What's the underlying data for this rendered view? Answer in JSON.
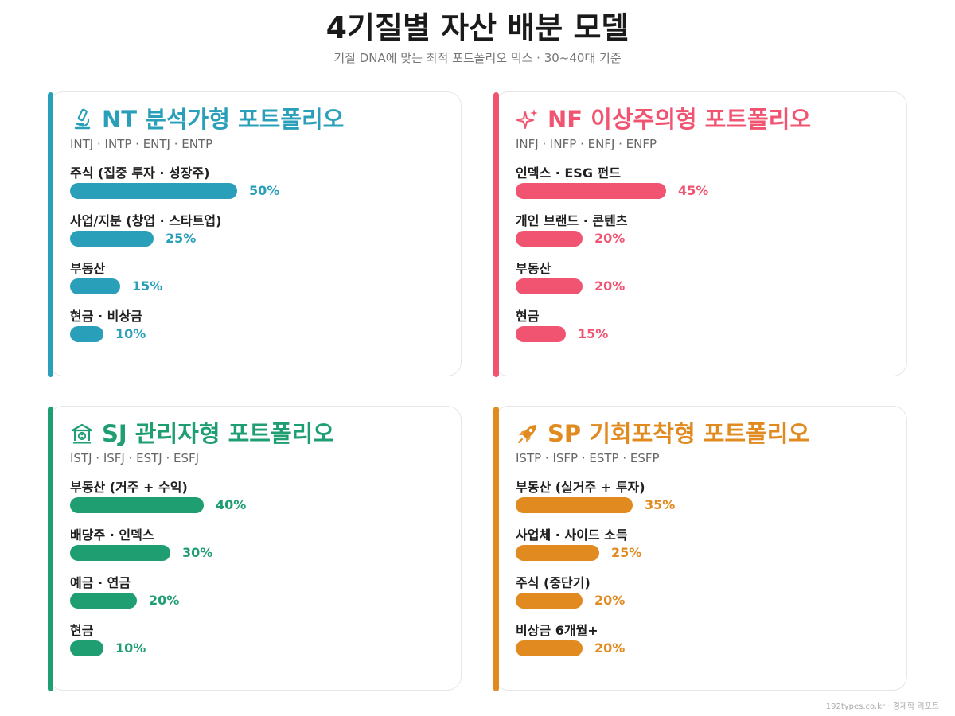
{
  "header": {
    "title": "4기질별 자산 배분 모델",
    "subtitle": "기질 DNA에 맞는 최적 포트폴리오 믹스 · 30~40대 기준"
  },
  "footer": "192types.co.kr · 경제학 리포트",
  "chart_data": [
    {
      "type": "bar",
      "title": "NT 분석가형 포트폴리오",
      "subtitle": "INTJ · INTP · ENTJ · ENTP",
      "icon": "microscope-icon",
      "color": "#2a9fba",
      "categories": [
        "주식 (집중 투자 · 성장주)",
        "사업/지분 (창업 · 스타트업)",
        "부동산",
        "현금 · 비상금"
      ],
      "values": [
        50,
        25,
        15,
        10
      ],
      "labels": [
        "50%",
        "25%",
        "15%",
        "10%"
      ],
      "unit": "%"
    },
    {
      "type": "bar",
      "title": "NF 이상주의형 포트폴리오",
      "subtitle": "INFJ · INFP · ENFJ · ENFP",
      "icon": "sparkles-icon",
      "color": "#f05471",
      "categories": [
        "인덱스 · ESG 펀드",
        "개인 브랜드 · 콘텐츠",
        "부동산",
        "현금"
      ],
      "values": [
        45,
        20,
        20,
        15
      ],
      "labels": [
        "45%",
        "20%",
        "20%",
        "15%"
      ],
      "unit": "%"
    },
    {
      "type": "bar",
      "title": "SJ 관리자형 포트폴리오",
      "subtitle": "ISTJ · ISFJ · ESTJ · ESFJ",
      "icon": "bank-icon",
      "color": "#1f9e72",
      "categories": [
        "부동산 (거주 + 수익)",
        "배당주 · 인덱스",
        "예금 · 연금",
        "현금"
      ],
      "values": [
        40,
        30,
        20,
        10
      ],
      "labels": [
        "40%",
        "30%",
        "20%",
        "10%"
      ],
      "unit": "%"
    },
    {
      "type": "bar",
      "title": "SP 기회포착형 포트폴리오",
      "subtitle": "ISTP · ISFP · ESTP · ESFP",
      "icon": "rocket-icon",
      "color": "#e08a1f",
      "categories": [
        "부동산 (실거주 + 투자)",
        "사업체 · 사이드 소득",
        "주식 (중단기)",
        "비상금 6개월+"
      ],
      "values": [
        35,
        25,
        20,
        20
      ],
      "labels": [
        "35%",
        "25%",
        "20%",
        "20%"
      ],
      "unit": "%"
    }
  ]
}
